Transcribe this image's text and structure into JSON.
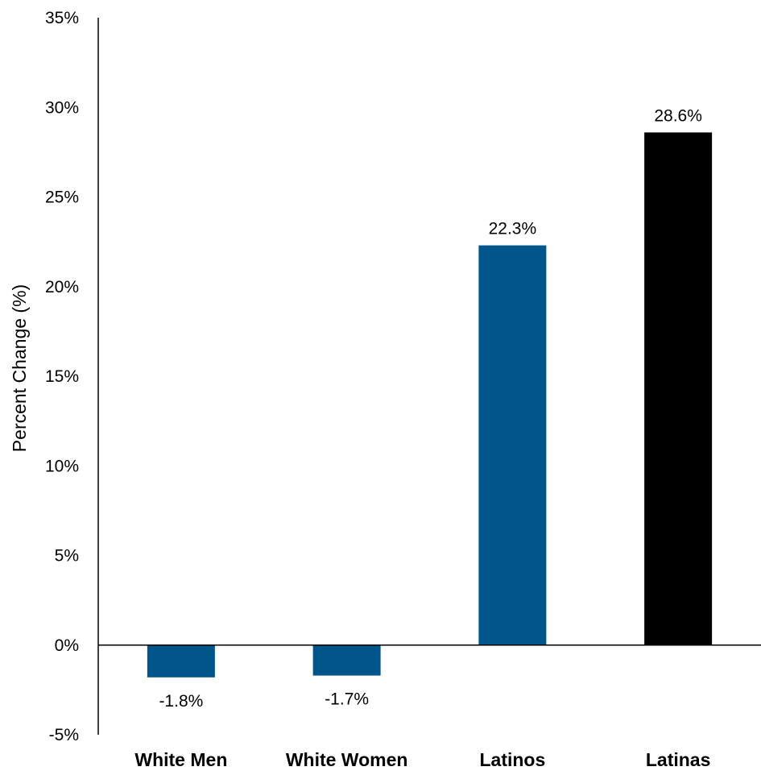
{
  "chart_data": {
    "type": "bar",
    "title": "",
    "xlabel": "",
    "ylabel": "Percent Change (%)",
    "ylim": [
      -5,
      35
    ],
    "yticks": [
      -5,
      0,
      5,
      10,
      15,
      20,
      25,
      30,
      35
    ],
    "ytick_labels": [
      "-5%",
      "0%",
      "5%",
      "10%",
      "15%",
      "20%",
      "25%",
      "30%",
      "35%"
    ],
    "categories": [
      "White Men",
      "White Women",
      "Latinos",
      "Latinas"
    ],
    "values": [
      -1.8,
      -1.7,
      22.3,
      28.6
    ],
    "data_labels": [
      "-1.8%",
      "-1.7%",
      "22.3%",
      "28.6%"
    ],
    "bar_colors": [
      "#00568a",
      "#00568a",
      "#00568a",
      "#000000"
    ],
    "grid": false,
    "legend": "none"
  }
}
